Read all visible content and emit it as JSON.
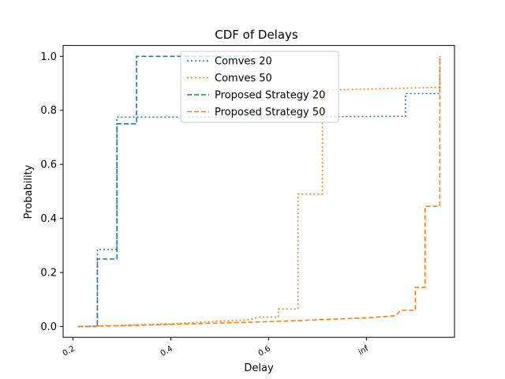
{
  "chart_data": {
    "type": "line",
    "title": "CDF of Delays",
    "xlabel": "Delay",
    "ylabel": "Probability",
    "x_ticks": [
      "0.2",
      "0.4",
      "0.6",
      "inf"
    ],
    "y_ticks": [
      "0.0",
      "0.2",
      "0.4",
      "0.6",
      "0.8",
      "1.0"
    ],
    "ylim": [
      -0.04,
      1.04
    ],
    "grid": false,
    "legend_position": "upper-center",
    "series": [
      {
        "name": "Comves 20",
        "style": "dotted",
        "color": "#1f77b4",
        "steps": [
          [
            0.21,
            0.0
          ],
          [
            0.25,
            0.0
          ],
          [
            0.25,
            0.285
          ],
          [
            0.29,
            0.285
          ],
          [
            0.29,
            0.775
          ],
          [
            0.5,
            0.775
          ],
          [
            0.88,
            0.778
          ],
          [
            0.88,
            0.862
          ],
          [
            0.95,
            0.862
          ],
          [
            0.95,
            1.0
          ]
        ]
      },
      {
        "name": "Comves 50",
        "style": "dotted",
        "color": "#ff7f0e",
        "steps": [
          [
            0.21,
            0.0
          ],
          [
            0.4,
            0.01
          ],
          [
            0.5,
            0.02
          ],
          [
            0.56,
            0.025
          ],
          [
            0.58,
            0.035
          ],
          [
            0.62,
            0.035
          ],
          [
            0.62,
            0.065
          ],
          [
            0.66,
            0.065
          ],
          [
            0.66,
            0.49
          ],
          [
            0.71,
            0.49
          ],
          [
            0.71,
            0.875
          ],
          [
            0.95,
            0.885
          ],
          [
            0.95,
            1.0
          ]
        ]
      },
      {
        "name": "Proposed Strategy 20",
        "style": "dashed",
        "color": "#1f77b4",
        "steps": [
          [
            0.21,
            0.0
          ],
          [
            0.25,
            0.0
          ],
          [
            0.25,
            0.25
          ],
          [
            0.29,
            0.25
          ],
          [
            0.29,
            0.75
          ],
          [
            0.33,
            0.75
          ],
          [
            0.33,
            1.0
          ],
          [
            0.56,
            1.0
          ]
        ]
      },
      {
        "name": "Proposed Strategy 50",
        "style": "dashed",
        "color": "#ff7f0e",
        "steps": [
          [
            0.21,
            0.0
          ],
          [
            0.3,
            0.003
          ],
          [
            0.4,
            0.008
          ],
          [
            0.5,
            0.013
          ],
          [
            0.6,
            0.018
          ],
          [
            0.7,
            0.025
          ],
          [
            0.8,
            0.032
          ],
          [
            0.86,
            0.04
          ],
          [
            0.87,
            0.06
          ],
          [
            0.9,
            0.06
          ],
          [
            0.9,
            0.145
          ],
          [
            0.92,
            0.145
          ],
          [
            0.92,
            0.445
          ],
          [
            0.95,
            0.445
          ],
          [
            0.95,
            1.0
          ]
        ]
      }
    ],
    "x_tick_values": [
      0.2,
      0.4,
      0.6,
      0.8
    ],
    "xlim": [
      0.18,
      0.98
    ]
  }
}
